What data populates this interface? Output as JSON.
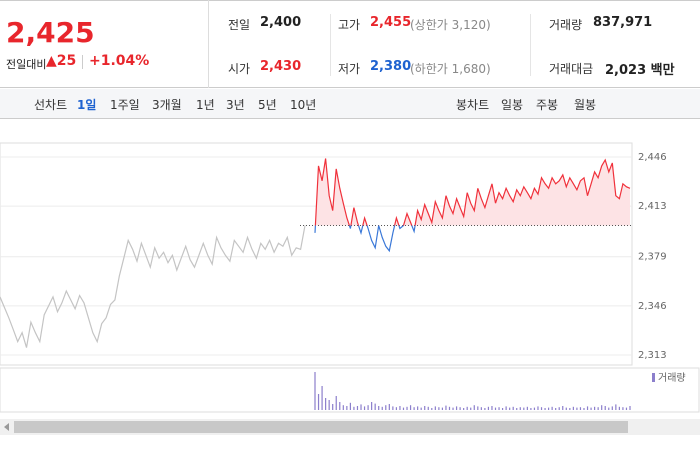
{
  "quote": {
    "price": "2,425",
    "change_label": "전일대비",
    "change": "▲25",
    "change_pct": "+1.04%",
    "fields": [
      {
        "label": "전일",
        "value": "2,400"
      },
      {
        "label": "고가",
        "value": "2,455",
        "note": "(상한가 3,120)",
        "color": "#e8262c"
      },
      {
        "label": "거래량",
        "value": "837,971"
      },
      {
        "label": "시가",
        "value": "2,430",
        "color": "#e8262c"
      },
      {
        "label": "저가",
        "value": "2,380",
        "note": "(하한가 1,680)",
        "color": "#1e62d0"
      },
      {
        "label": "거래대금",
        "value": "2,023 백만"
      }
    ]
  },
  "tabs": {
    "line_label": "선차트",
    "line_periods": [
      "1일",
      "1주일",
      "3개월",
      "1년",
      "3년",
      "5년",
      "10년"
    ],
    "candle_label": "봉차트",
    "candle_periods": [
      "일봉",
      "주봉",
      "월봉"
    ]
  },
  "chart_data": {
    "type": "line",
    "baseline": 2400,
    "ylim": [
      2313,
      2446
    ],
    "yticks": [
      {
        "value": 2446,
        "label": "2,446"
      },
      {
        "value": 2413,
        "label": "2,413"
      },
      {
        "value": 2379,
        "label": "2,379"
      },
      {
        "value": 2346,
        "label": "2,346"
      },
      {
        "value": 2313,
        "label": "2,313"
      }
    ],
    "grid": true,
    "up_color": "#f0313b",
    "down_color": "#3a78d8",
    "fill_color": "#fde3e5",
    "series": [
      {
        "color": "#c4c4c4",
        "values": [
          2352,
          2345,
          2338,
          2330,
          2322,
          2328,
          2318,
          2335,
          2328,
          2322,
          2340,
          2346,
          2352,
          2342,
          2348,
          2356,
          2350,
          2344,
          2353,
          2348,
          2338,
          2328,
          2322,
          2334,
          2338,
          2347,
          2350,
          2366,
          2378,
          2390,
          2384,
          2376,
          2388,
          2380,
          2372,
          2385,
          2378,
          2382,
          2375,
          2380,
          2370,
          2378,
          2386,
          2377,
          2372,
          2380,
          2388,
          2380,
          2374,
          2392,
          2385,
          2380,
          2376,
          2390,
          2386,
          2382,
          2392,
          2384,
          2378,
          2388,
          2384,
          2390,
          2382,
          2388,
          2386,
          2392,
          2380,
          2385,
          2384,
          2400
        ]
      },
      {
        "values": [
          2395,
          2440,
          2430,
          2445,
          2420,
          2410,
          2438,
          2425,
          2415,
          2405,
          2398,
          2412,
          2402,
          2395,
          2405,
          2398,
          2390,
          2385,
          2400,
          2392,
          2386,
          2383,
          2395,
          2405,
          2398,
          2400,
          2408,
          2402,
          2396,
          2410,
          2404,
          2414,
          2408,
          2402,
          2416,
          2410,
          2405,
          2420,
          2413,
          2408,
          2418,
          2412,
          2406,
          2422,
          2415,
          2410,
          2425,
          2418,
          2412,
          2420,
          2428,
          2415,
          2422,
          2418,
          2425,
          2420,
          2416,
          2424,
          2420,
          2426,
          2422,
          2418,
          2425,
          2421,
          2432,
          2428,
          2425,
          2432,
          2428,
          2430,
          2434,
          2426,
          2432,
          2428,
          2424,
          2430,
          2432,
          2420,
          2428,
          2436,
          2432,
          2440,
          2444,
          2436,
          2442,
          2420,
          2418,
          2428,
          2426,
          2425
        ]
      }
    ],
    "volume_label": "거래량",
    "volume_color": "#8c7fcc",
    "volume": [
      95,
      40,
      60,
      30,
      25,
      15,
      35,
      20,
      12,
      10,
      18,
      8,
      10,
      14,
      9,
      12,
      20,
      16,
      10,
      8,
      12,
      15,
      9,
      7,
      10,
      6,
      8,
      12,
      7,
      9,
      6,
      10,
      8,
      5,
      9,
      7,
      6,
      11,
      8,
      6,
      9,
      7,
      5,
      8,
      6,
      12,
      9,
      7,
      5,
      8,
      10,
      6,
      7,
      5,
      9,
      6,
      8,
      5,
      7,
      6,
      8,
      5,
      6,
      9,
      7,
      5,
      6,
      8,
      5,
      7,
      10,
      6,
      5,
      8,
      6,
      7,
      5,
      9,
      6,
      8,
      7,
      12,
      10,
      6,
      9,
      14,
      8,
      7,
      6,
      10
    ]
  }
}
